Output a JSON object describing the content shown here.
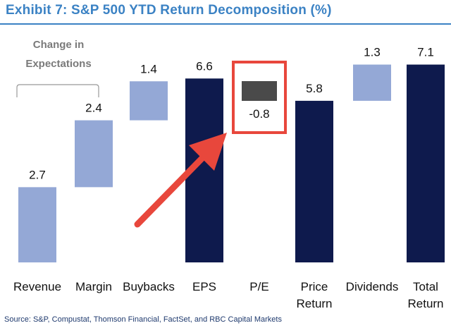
{
  "title": "Exhibit 7: S&P 500 YTD Return Decomposition (%)",
  "source": "Source: S&P, Compustat, Thomson Financial, FactSet, and RBC Capital Markets",
  "annotation": {
    "group_label_line1": "Change in",
    "group_label_line2": "Expectations"
  },
  "colors": {
    "light_bar": "#94a8d6",
    "dark_bar": "#0e1a4d",
    "pe_bar": "#4a4a4a",
    "highlight": "#e8473c",
    "title": "#3b82c4",
    "text": "#111111",
    "bracket": "#999999"
  },
  "chart_data": {
    "type": "waterfall",
    "title": "Exhibit 7: S&P 500 YTD Return Decomposition (%)",
    "ylabel": "",
    "ylim": [
      0,
      8
    ],
    "categories": [
      "Revenue",
      "Margin",
      "Buybacks",
      "EPS",
      "P/E",
      "Price Return",
      "Dividends",
      "Total Return"
    ],
    "tick_labels": [
      [
        "Revenue"
      ],
      [
        "Margin"
      ],
      [
        "Buybacks"
      ],
      [
        "EPS"
      ],
      [
        "P/E"
      ],
      [
        "Price",
        "Return"
      ],
      [
        "Dividends"
      ],
      [
        "Total",
        "Return"
      ]
    ],
    "values": [
      2.7,
      2.4,
      1.4,
      6.6,
      -0.8,
      5.8,
      1.3,
      7.1
    ],
    "labels": [
      "2.7",
      "2.4",
      "1.4",
      "6.6",
      "-0.8",
      "5.8",
      "1.3",
      "7.1"
    ],
    "bar_kind": [
      "delta",
      "delta",
      "delta",
      "total",
      "delta",
      "total",
      "delta",
      "total"
    ],
    "highlighted": "P/E"
  }
}
